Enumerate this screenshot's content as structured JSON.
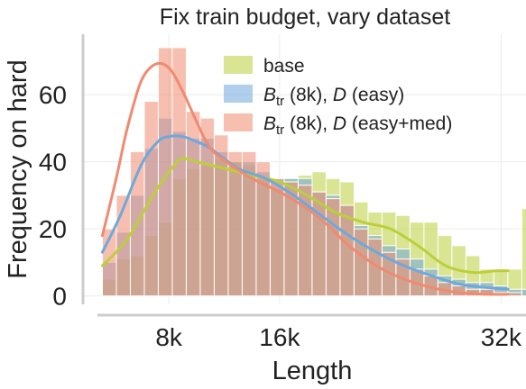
{
  "chart_data": {
    "type": "bar",
    "title": "Fix train budget, vary dataset",
    "xlabel": "Length",
    "ylabel": "Frequency on hard",
    "x_ticks": [
      {
        "value": 8,
        "label": "8k"
      },
      {
        "value": 16,
        "label": "16k"
      },
      {
        "value": 32,
        "label": "32k"
      }
    ],
    "y_ticks": [
      {
        "value": 0,
        "label": "0"
      },
      {
        "value": 20,
        "label": "20"
      },
      {
        "value": 40,
        "label": "40"
      },
      {
        "value": 60,
        "label": "60"
      }
    ],
    "xlim": [
      1.8,
      33.8
    ],
    "ylim": [
      -2.5,
      78
    ],
    "grid": true,
    "legend_placement": "top-right",
    "bin_start": 3.2,
    "bin_width": 1.01,
    "series": [
      {
        "name": "base",
        "color": "#bccf3a",
        "hist": [
          5,
          11,
          12,
          18,
          22,
          35,
          38,
          39,
          41,
          40,
          39,
          35,
          32,
          35,
          36,
          37,
          35,
          34,
          28,
          25,
          25,
          24,
          22,
          22,
          18,
          15,
          12,
          8,
          8,
          8,
          26
        ],
        "kde": [
          [
            3.2,
            9
          ],
          [
            5,
            17
          ],
          [
            7,
            31
          ],
          [
            8.4,
            39
          ],
          [
            9,
            41
          ],
          [
            10,
            40
          ],
          [
            12,
            38
          ],
          [
            14,
            36
          ],
          [
            16,
            34
          ],
          [
            18,
            30
          ],
          [
            20,
            25
          ],
          [
            22,
            22
          ],
          [
            24,
            20
          ],
          [
            26,
            15
          ],
          [
            28,
            9
          ],
          [
            30,
            7
          ],
          [
            31.6,
            7.5
          ],
          [
            32.5,
            7.5
          ]
        ]
      },
      {
        "name": "B_tr (8k), D (easy)",
        "legend_parts": [
          "B",
          "tr",
          " (8k), ",
          "D",
          " (easy)"
        ],
        "color": "#6fa8dc",
        "hist": [
          10,
          19,
          30,
          44,
          53,
          49,
          47,
          47,
          43,
          40,
          40,
          37,
          35,
          35,
          35,
          31,
          30,
          27,
          21,
          18,
          15,
          14,
          11,
          8,
          6,
          5,
          4,
          4,
          3,
          2,
          2
        ],
        "kde": [
          [
            3.2,
            13
          ],
          [
            4.5,
            24
          ],
          [
            6,
            39
          ],
          [
            7.2,
            46
          ],
          [
            8,
            47.5
          ],
          [
            9,
            47.5
          ],
          [
            10,
            46
          ],
          [
            11,
            44
          ],
          [
            13,
            38
          ],
          [
            15,
            35
          ],
          [
            17,
            30
          ],
          [
            19,
            24
          ],
          [
            21,
            18
          ],
          [
            23,
            13
          ],
          [
            25,
            9
          ],
          [
            27,
            6
          ],
          [
            29,
            3.5
          ],
          [
            31,
            2.5
          ],
          [
            32.5,
            2
          ]
        ]
      },
      {
        "name": "B_tr (8k), D (easy+med)",
        "legend_parts": [
          "B",
          "tr",
          " (8k), ",
          "D",
          " (easy+med)"
        ],
        "color": "#f08a70",
        "hist": [
          20,
          30,
          43,
          58,
          74,
          74,
          55,
          53,
          48,
          43,
          43,
          40,
          35,
          34,
          33,
          31,
          29,
          27,
          20,
          17,
          13,
          11,
          8,
          6,
          4,
          3,
          2,
          2,
          1,
          1,
          0
        ],
        "kde": [
          [
            3.2,
            18
          ],
          [
            4.2,
            35
          ],
          [
            5,
            50
          ],
          [
            6,
            64
          ],
          [
            7,
            69
          ],
          [
            8,
            68
          ],
          [
            9,
            61
          ],
          [
            10,
            52
          ],
          [
            11,
            44
          ],
          [
            12.5,
            39
          ],
          [
            14,
            35
          ],
          [
            16,
            31
          ],
          [
            18,
            26
          ],
          [
            19.5,
            21
          ],
          [
            21,
            15
          ],
          [
            23,
            9
          ],
          [
            25,
            5
          ],
          [
            27,
            2.5
          ],
          [
            29,
            1
          ],
          [
            31,
            0.5
          ],
          [
            32.5,
            0.5
          ]
        ]
      }
    ]
  }
}
